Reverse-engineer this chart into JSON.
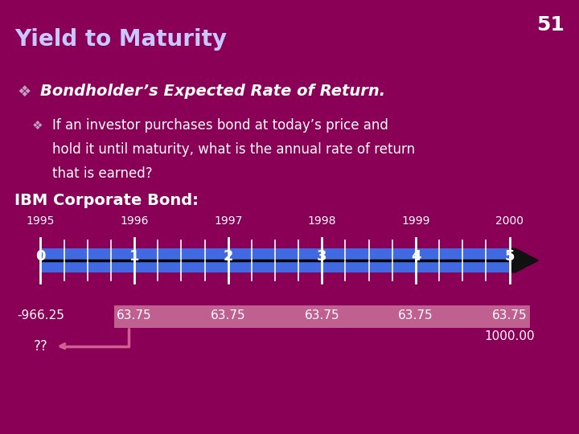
{
  "title": "Yield to Maturity",
  "slide_number": "51",
  "bg_color": "#8B0057",
  "title_color": "#E8E8FF",
  "text_color": "#FFFFFF",
  "bullet1": "Bondholder’s Expected Rate of Return.",
  "bullet2_line1": "If an investor purchases bond at today’s price and",
  "bullet2_line2": "hold it until maturity, what is the annual rate of return",
  "bullet2_line3": "that is earned?",
  "section_title": "IBM Corporate Bond:",
  "years": [
    "1995",
    "1996",
    "1997",
    "1998",
    "1999",
    "2000"
  ],
  "periods": [
    "0",
    "1",
    "2",
    "3",
    "4",
    "5"
  ],
  "cashflows": [
    "-966.25",
    "63.75",
    "63.75",
    "63.75",
    "63.75",
    "63.75"
  ],
  "extra_cashflow": "1000.00",
  "question": "??",
  "timeline_color": "#4169E1",
  "cashflow_box_color": "#C06090",
  "arrow_color": "#D06090",
  "tick_color": "#FFFFFF",
  "diamond_color": "#C0A0C0"
}
